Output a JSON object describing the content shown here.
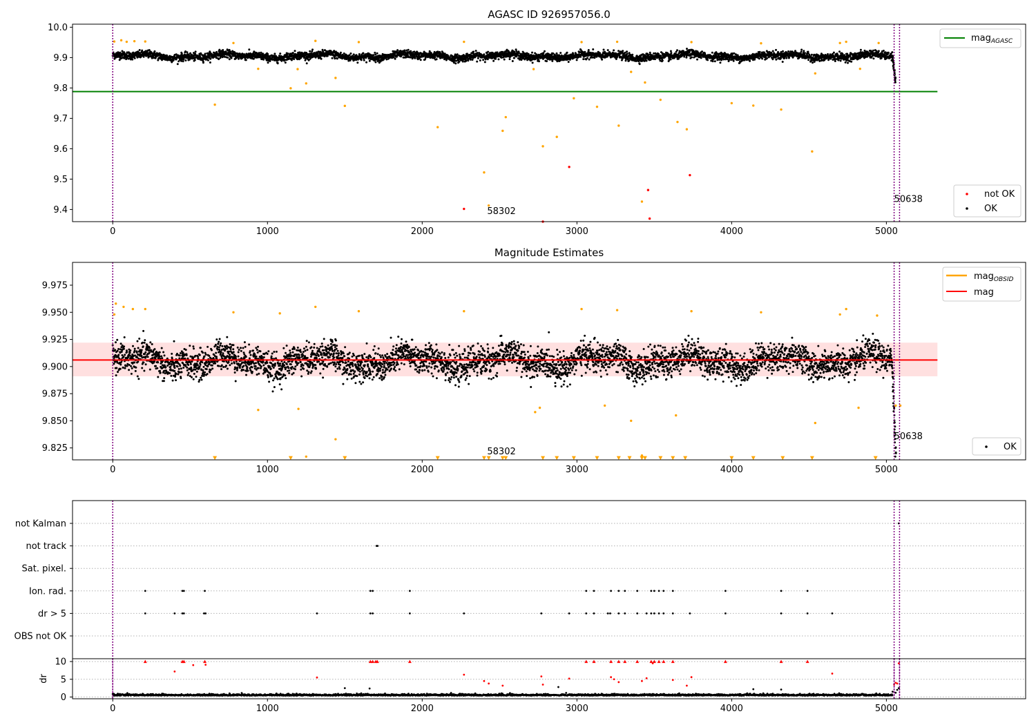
{
  "chart_data": [
    {
      "type": "scatter",
      "title": "AGASC ID 926957056.0",
      "xlim": [
        -260,
        5900
      ],
      "ylim": [
        9.36,
        10.01
      ],
      "xticks": [
        "0",
        "1000",
        "2000",
        "3000",
        "4000",
        "5000"
      ],
      "yticks": [
        "9.4",
        "9.5",
        "9.6",
        "9.7",
        "9.8",
        "9.9",
        "10.0"
      ],
      "grid": false,
      "legend_placement": "top-right",
      "legend": {
        "line_label": "mag",
        "line_sub": "AGASC"
      },
      "legend2_placement": "lower-right",
      "legend2": [
        {
          "label": "not OK",
          "color": "#ff0000"
        },
        {
          "label": "OK",
          "color": "#000000"
        }
      ],
      "mag_agasc_line": {
        "y": 9.788,
        "x": [
          -260,
          5330
        ],
        "color": "#008000"
      },
      "vlines": [
        0,
        5050,
        5085
      ],
      "vline_color": "#800080",
      "annotations": [
        {
          "text": "58302",
          "x": 2420,
          "y": 9.385
        },
        {
          "text": "50638",
          "x": 5050,
          "y": 9.425
        }
      ],
      "ok_band": {
        "x_start": 0,
        "x_end": 5040,
        "center": 9.905,
        "spread": 0.014,
        "wave_amp": 0.01,
        "color": "#000000"
      },
      "ok_tail": {
        "x_start": 5040,
        "x_end": 5060,
        "y_start": 9.9,
        "y_end": 9.82
      },
      "orange_points": [
        [
          10,
          9.953
        ],
        [
          55,
          9.957
        ],
        [
          90,
          9.952
        ],
        [
          140,
          9.954
        ],
        [
          210,
          9.953
        ],
        [
          660,
          9.745
        ],
        [
          780,
          9.948
        ],
        [
          940,
          9.863
        ],
        [
          1150,
          9.799
        ],
        [
          1195,
          9.862
        ],
        [
          1250,
          9.815
        ],
        [
          1310,
          9.955
        ],
        [
          1440,
          9.833
        ],
        [
          1500,
          9.741
        ],
        [
          1590,
          9.951
        ],
        [
          2100,
          9.671
        ],
        [
          2270,
          9.952
        ],
        [
          2400,
          9.522
        ],
        [
          2430,
          9.413
        ],
        [
          2520,
          9.659
        ],
        [
          2540,
          9.704
        ],
        [
          2720,
          9.862
        ],
        [
          2780,
          9.608
        ],
        [
          2870,
          9.639
        ],
        [
          2980,
          9.766
        ],
        [
          3030,
          9.951
        ],
        [
          3130,
          9.738
        ],
        [
          3260,
          9.952
        ],
        [
          3270,
          9.676
        ],
        [
          3350,
          9.853
        ],
        [
          3420,
          9.426
        ],
        [
          3440,
          9.818
        ],
        [
          3540,
          9.761
        ],
        [
          3650,
          9.688
        ],
        [
          3710,
          9.664
        ],
        [
          3740,
          9.951
        ],
        [
          4000,
          9.75
        ],
        [
          4140,
          9.742
        ],
        [
          4190,
          9.947
        ],
        [
          4320,
          9.729
        ],
        [
          4520,
          9.591
        ],
        [
          4540,
          9.848
        ],
        [
          4700,
          9.948
        ],
        [
          4740,
          9.952
        ],
        [
          4830,
          9.863
        ],
        [
          4950,
          9.948
        ]
      ],
      "orange_color": "#ffa500",
      "red_points": [
        [
          2270,
          9.402
        ],
        [
          2950,
          9.54
        ],
        [
          3460,
          9.464
        ],
        [
          3470,
          9.37
        ],
        [
          3730,
          9.513
        ],
        [
          2780,
          9.36
        ]
      ],
      "red_color": "#ff0000"
    },
    {
      "type": "scatter",
      "title": "Magnitude Estimates",
      "xlim": [
        -260,
        5900
      ],
      "ylim": [
        9.814,
        9.996
      ],
      "xticks": [
        "0",
        "1000",
        "2000",
        "3000",
        "4000",
        "5000"
      ],
      "yticks": [
        "9.825",
        "9.850",
        "9.875",
        "9.900",
        "9.925",
        "9.950",
        "9.975"
      ],
      "grid": false,
      "legend_placement": "top-right",
      "legend": [
        {
          "label": "mag",
          "sub": "OBSID",
          "color": "#ffa500"
        },
        {
          "label": "mag",
          "sub": "",
          "color": "#ff0000"
        }
      ],
      "legend2_placement": "lower-right",
      "legend2": [
        {
          "label": "OK",
          "color": "#000000"
        }
      ],
      "mag_line": {
        "y": 9.906,
        "x": [
          -260,
          5330
        ],
        "color": "#ff0000"
      },
      "mag_band": {
        "low": 9.891,
        "high": 9.922,
        "color": "#ff6666"
      },
      "vlines": [
        0,
        5050,
        5085
      ],
      "vline_color": "#800080",
      "annotations": [
        {
          "text": "58302",
          "x": 2420,
          "y": 9.819
        },
        {
          "text": "50638",
          "x": 5050,
          "y": 9.833
        }
      ],
      "ok_band": {
        "x_start": 0,
        "x_end": 5040,
        "center": 9.905,
        "spread": 0.015,
        "wave_amp": 0.01,
        "color": "#000000"
      },
      "ok_tail": {
        "x_start": 5040,
        "x_end": 5060,
        "y_start": 9.895,
        "y_end": 9.816
      },
      "orange_points": [
        [
          10,
          9.948
        ],
        [
          20,
          9.958
        ],
        [
          70,
          9.955
        ],
        [
          130,
          9.953
        ],
        [
          210,
          9.953
        ],
        [
          780,
          9.95
        ],
        [
          940,
          9.86
        ],
        [
          1080,
          9.949
        ],
        [
          1200,
          9.861
        ],
        [
          1250,
          9.817
        ],
        [
          1310,
          9.955
        ],
        [
          1440,
          9.833
        ],
        [
          1590,
          9.951
        ],
        [
          2270,
          9.951
        ],
        [
          2730,
          9.858
        ],
        [
          2760,
          9.862
        ],
        [
          3030,
          9.953
        ],
        [
          3180,
          9.864
        ],
        [
          3260,
          9.952
        ],
        [
          3350,
          9.85
        ],
        [
          3420,
          9.818
        ],
        [
          3640,
          9.855
        ],
        [
          3740,
          9.951
        ],
        [
          4190,
          9.95
        ],
        [
          4540,
          9.848
        ],
        [
          4700,
          9.948
        ],
        [
          4740,
          9.953
        ],
        [
          4820,
          9.862
        ],
        [
          4940,
          9.947
        ],
        [
          5060,
          9.864
        ],
        [
          5090,
          9.864
        ]
      ],
      "orange_color": "#ffa500",
      "triangle_x": [
        660,
        1150,
        1500,
        2100,
        2400,
        2430,
        2520,
        2540,
        2780,
        2870,
        2980,
        3130,
        3270,
        3340,
        3420,
        3440,
        3540,
        3620,
        3700,
        4000,
        4140,
        4330,
        4520,
        4930
      ],
      "triangle_y": 9.8155,
      "triangle_color": "#ffa500"
    },
    {
      "type": "scatter",
      "title": "",
      "xlim": [
        -260,
        5900
      ],
      "xticks": [
        "0",
        "1000",
        "2000",
        "3000",
        "4000",
        "5000"
      ],
      "categories": [
        "not Kalman",
        "not track",
        "Sat. pixel.",
        "Ion. rad.",
        "dr > 5",
        "OBS not OK"
      ],
      "grid": "horizontal-dotted",
      "vlines": [
        0,
        5050,
        5085
      ],
      "vline_color": "#800080",
      "flags": {
        "not Kalman": [
          5080
        ],
        "not track": [
          1705,
          1712
        ],
        "Sat. pixel.": [],
        "Ion. rad.": [
          210,
          450,
          460,
          595,
          1665,
          1680,
          1920,
          3060,
          3110,
          3220,
          3270,
          3310,
          3390,
          3480,
          3500,
          3530,
          3560,
          3620,
          3960,
          4320,
          4490
        ],
        "dr > 5": [
          210,
          400,
          450,
          460,
          590,
          600,
          1320,
          1665,
          1680,
          1920,
          2270,
          2770,
          2950,
          3060,
          3110,
          3200,
          3215,
          3270,
          3310,
          3390,
          3450,
          3480,
          3500,
          3530,
          3560,
          3620,
          3730,
          3960,
          4320,
          4490,
          4650
        ],
        "OBS not OK": []
      },
      "flag_color": "#000000"
    },
    {
      "type": "scatter",
      "title": "",
      "ylabel": "dr",
      "xlim": [
        -260,
        5900
      ],
      "ylim": [
        -0.5,
        10.8
      ],
      "yticks": [
        "0",
        "5",
        "10"
      ],
      "xticks": [
        "0",
        "1000",
        "2000",
        "3000",
        "4000",
        "5000"
      ],
      "grid": "horizontal-dotted",
      "vlines": [
        0,
        5050,
        5085
      ],
      "vline_color": "#800080",
      "dr_baseline": {
        "x_start": 0,
        "x_end": 5040,
        "mean": 0.4,
        "spread": 0.3,
        "color": "#000000"
      },
      "dr_red_clip": [
        210,
        450,
        460,
        595,
        1665,
        1680,
        1700,
        1710,
        1920,
        3060,
        3110,
        3220,
        3270,
        3310,
        3390,
        3480,
        3500,
        3530,
        3560,
        3620,
        3960,
        4320,
        4490
      ],
      "dr_red_points": [
        [
          400,
          7.2
        ],
        [
          520,
          9
        ],
        [
          600,
          9.1
        ],
        [
          1320,
          5.5
        ],
        [
          2270,
          6.3
        ],
        [
          2400,
          4.5
        ],
        [
          2430,
          3.8
        ],
        [
          2520,
          3.2
        ],
        [
          2770,
          5.8
        ],
        [
          2780,
          3.5
        ],
        [
          2950,
          5.2
        ],
        [
          3220,
          5.6
        ],
        [
          3240,
          5
        ],
        [
          3270,
          4.2
        ],
        [
          3420,
          4.5
        ],
        [
          3450,
          5.3
        ],
        [
          3490,
          9.5
        ],
        [
          3620,
          4.8
        ],
        [
          3710,
          3.2
        ],
        [
          3740,
          5.6
        ],
        [
          4650,
          6.6
        ],
        [
          5050,
          3.5
        ],
        [
          5060,
          4
        ],
        [
          5070,
          3.8
        ],
        [
          5080,
          9.5
        ]
      ],
      "dr_black_points": [
        [
          1500,
          2.5
        ],
        [
          1660,
          2.4
        ],
        [
          2880,
          2.8
        ],
        [
          4140,
          2.2
        ],
        [
          4320,
          2.1
        ],
        [
          5040,
          1.5
        ],
        [
          5060,
          1.2
        ],
        [
          5070,
          2
        ],
        [
          5080,
          2.5
        ]
      ],
      "red_color": "#ff0000"
    }
  ]
}
